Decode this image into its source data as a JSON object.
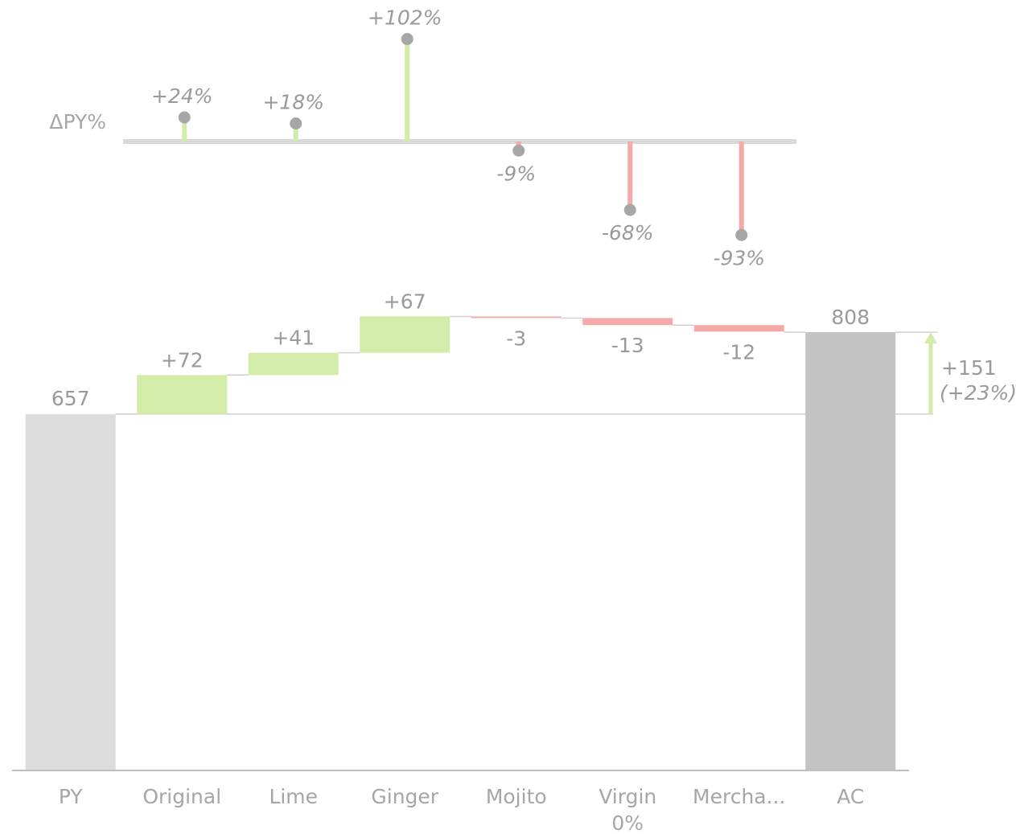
{
  "chart_data": [
    {
      "type": "lollipop",
      "row_label": "ΔPY%",
      "categories": [
        "Original",
        "Lime",
        "Ginger",
        "Mojito",
        "Virgin 0%",
        "Mercha..."
      ],
      "values": [
        24,
        18,
        102,
        -9,
        -68,
        -93
      ],
      "labels": [
        "+24%",
        "+18%",
        "+102%",
        "-9%",
        "-68%",
        "-93%"
      ],
      "colors": {
        "positive": "#d4ecaa",
        "negative": "#f5a9a9",
        "axis": "#d9d9d9",
        "dot": "#a6a6a6"
      }
    },
    {
      "type": "waterfall",
      "categories": [
        "PY",
        "Original",
        "Lime",
        "Ginger",
        "Mojito",
        "Virgin 0%",
        "Mercha...",
        "AC"
      ],
      "category_lines": [
        [
          "PY"
        ],
        [
          "Original"
        ],
        [
          "Lime"
        ],
        [
          "Ginger"
        ],
        [
          "Mojito"
        ],
        [
          "Virgin",
          "0%"
        ],
        [
          "Mercha..."
        ],
        [
          "AC"
        ]
      ],
      "start": {
        "name": "PY",
        "value": 657,
        "label": "657"
      },
      "deltas": [
        {
          "name": "Original",
          "value": 72,
          "label": "+72"
        },
        {
          "name": "Lime",
          "value": 41,
          "label": "+41"
        },
        {
          "name": "Ginger",
          "value": 67,
          "label": "+67"
        },
        {
          "name": "Mojito",
          "value": -3,
          "label": "-3"
        },
        {
          "name": "Virgin 0%",
          "value": -13,
          "label": "-13"
        },
        {
          "name": "Mercha...",
          "value": -12,
          "label": "-12"
        }
      ],
      "end": {
        "name": "AC",
        "value": 808,
        "label": "808"
      },
      "difference": {
        "value": 151,
        "label": "+151",
        "percent_label": "(+23%)"
      },
      "ylim": [
        0,
        808
      ],
      "colors": {
        "py": "#dcdcdc",
        "ac": "#c3c3c3",
        "positive": "#d4ecaa",
        "negative": "#f5a9a9",
        "connector": "#d0d0d0",
        "axis": "#bfbfbf"
      }
    }
  ]
}
